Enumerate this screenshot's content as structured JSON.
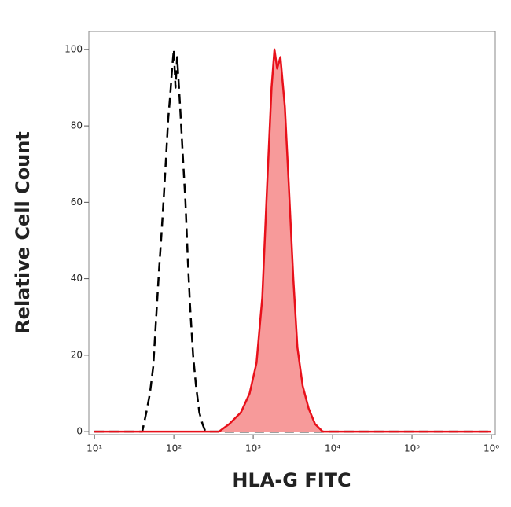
{
  "chart_data": {
    "type": "line",
    "xlabel": "HLA-G FITC",
    "ylabel": "Relative Cell Count",
    "xscale": "log",
    "xlim": [
      8.5,
      1120000
    ],
    "ylim": [
      -0.8,
      104.7
    ],
    "xticks": [
      {
        "value": 10,
        "label": "10¹"
      },
      {
        "value": 100,
        "label": "10²"
      },
      {
        "value": 1000,
        "label": "10³"
      },
      {
        "value": 10000,
        "label": "10⁴"
      },
      {
        "value": 100000,
        "label": "10⁵"
      },
      {
        "value": 1000000,
        "label": "10⁶"
      }
    ],
    "yticks": [
      0,
      20,
      40,
      60,
      80,
      100
    ],
    "series": [
      {
        "color": "#000000",
        "dash": true,
        "x": [
          10,
          40,
          45,
          50,
          55,
          60,
          65,
          70,
          75,
          80,
          85,
          90,
          95,
          100,
          105,
          110,
          120,
          130,
          140,
          150,
          160,
          175,
          190,
          210,
          230,
          250,
          1000000
        ],
        "values": [
          0,
          0,
          5,
          10,
          17,
          30,
          42,
          52,
          62,
          72,
          82,
          88,
          95,
          100,
          90,
          98,
          85,
          72,
          60,
          45,
          33,
          20,
          12,
          5,
          2,
          0,
          0
        ]
      },
      {
        "color": "#e8101a",
        "fill": "#f79a9a",
        "x": [
          10,
          370,
          500,
          700,
          900,
          1100,
          1300,
          1500,
          1700,
          1850,
          2000,
          2200,
          2500,
          2800,
          3200,
          3600,
          4200,
          5000,
          6000,
          7500,
          1000000
        ],
        "values": [
          0,
          0,
          2,
          5,
          10,
          18,
          35,
          65,
          90,
          100,
          95,
          98,
          85,
          65,
          40,
          22,
          12,
          6,
          2,
          0,
          0
        ]
      }
    ]
  }
}
